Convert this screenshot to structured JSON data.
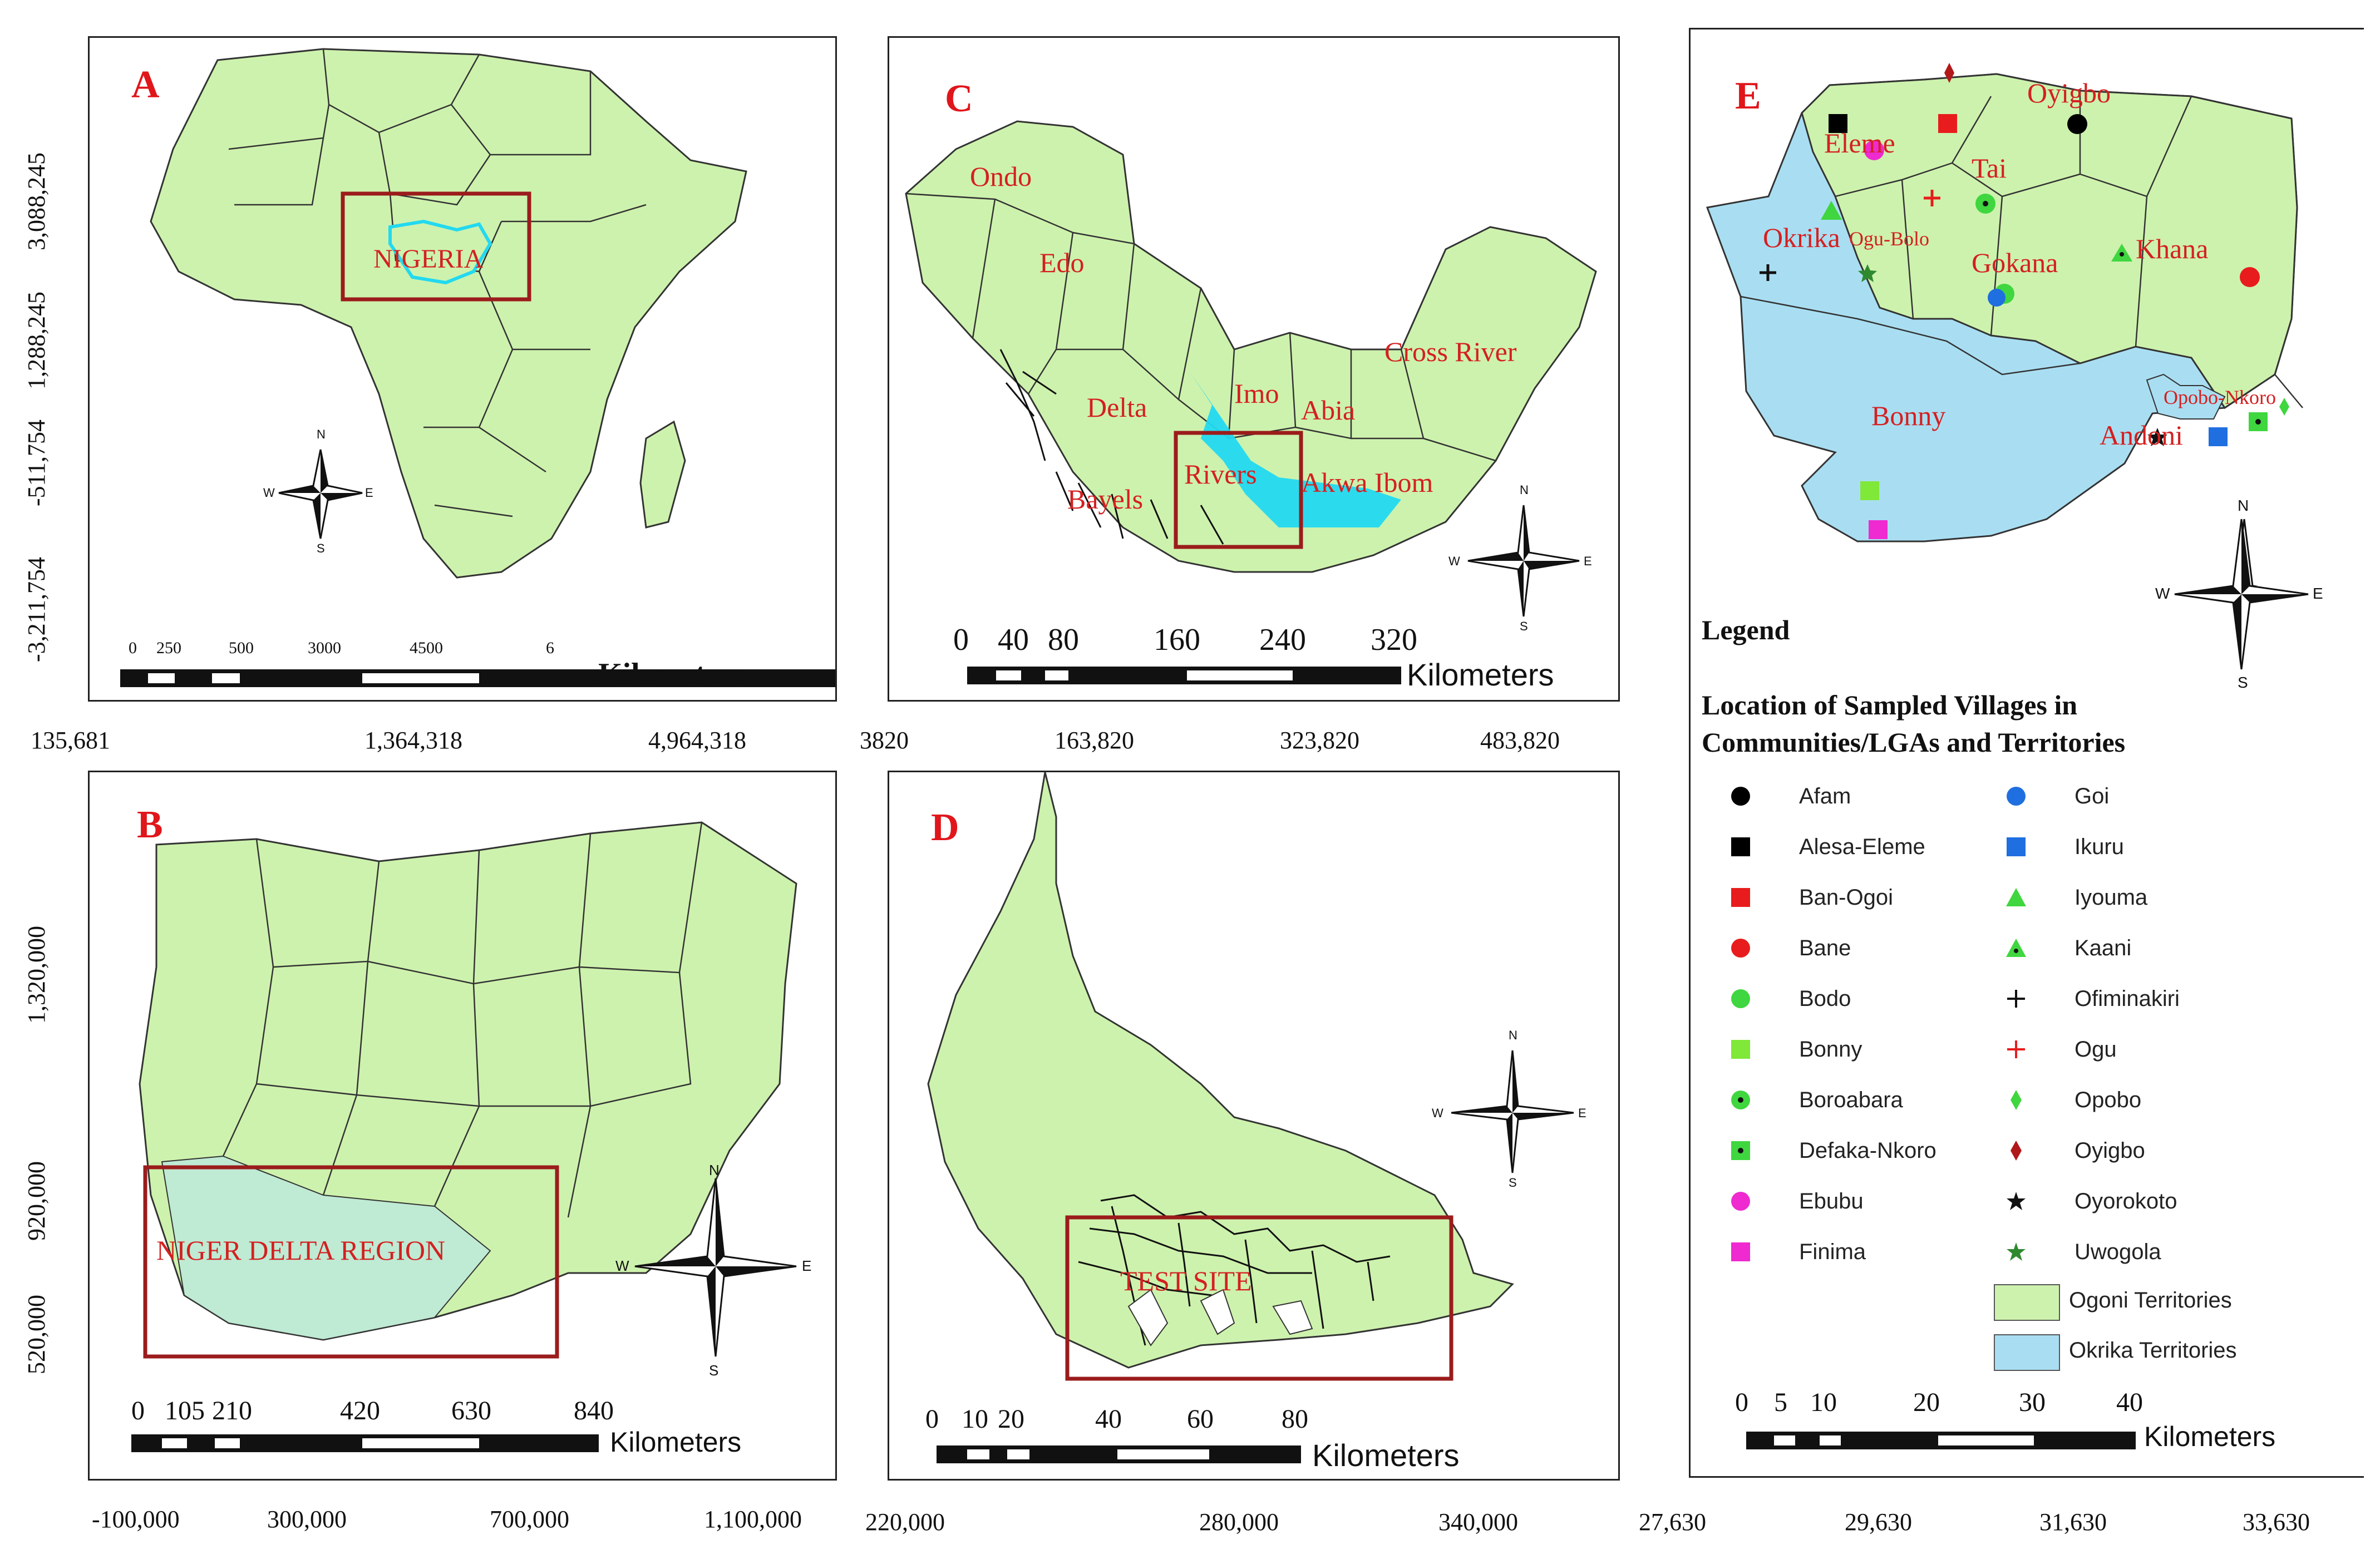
{
  "panels": {
    "A": {
      "label": "A",
      "region_label": "NIGERIA",
      "scale_ticks": [
        "0",
        "250",
        "500",
        "3000",
        "4500",
        "6"
      ],
      "scale_unit": "Kilometers",
      "x_coords": [
        "135,681",
        "1,364,318",
        "4,964,318"
      ],
      "y_coords": [
        "3,088,245",
        "1,288,245",
        "-511,754",
        "-3,211,754"
      ]
    },
    "B": {
      "label": "B",
      "region_label": "NIGER DELTA REGION",
      "scale_ticks": [
        "0",
        "105",
        "210",
        "420",
        "630",
        "840"
      ],
      "scale_unit": "Kilometers",
      "x_coords": [
        "-100,000",
        "300,000",
        "700,000",
        "1,100,000"
      ],
      "y_coords": [
        "1,320,000",
        "920,000",
        "520,000"
      ]
    },
    "C": {
      "label": "C",
      "states": [
        "Ondo",
        "Edo",
        "Delta",
        "Imo",
        "Abia",
        "Cross River",
        "Rivers",
        "Bayels",
        "Akwa Ibom"
      ],
      "scale_ticks": [
        "0",
        "40",
        "80",
        "160",
        "240",
        "320"
      ],
      "scale_unit": "Kilometers",
      "x_coords": [
        "3820",
        "163,820",
        "323,820",
        "483,820"
      ]
    },
    "D": {
      "label": "D",
      "region_label": "TEST SITE",
      "scale_ticks": [
        "0",
        "10",
        "20",
        "40",
        "60",
        "80"
      ],
      "scale_unit": "Kilometers",
      "x_coords": [
        "220,000",
        "280,000",
        "340,000"
      ]
    },
    "E": {
      "label": "E",
      "places": [
        "Oyigbo",
        "Eleme",
        "Tai",
        "Okrika",
        "Ogu-Bolo",
        "Gokana",
        "Khana",
        "Bonny",
        "Opobo-Nkoro",
        "Andoni"
      ],
      "scale_ticks": [
        "0",
        "5",
        "10",
        "20",
        "30",
        "40"
      ],
      "scale_unit": "Kilometers",
      "x_coords": [
        "27,630",
        "29,630",
        "31,630",
        "33,630"
      ],
      "legend_heading": "Legend",
      "legend_subtitle_1": "Location of Sampled Villages in",
      "legend_subtitle_2": "Communities/LGAs and Territories",
      "legend_left": [
        {
          "name": "Afam",
          "symbol": "circle",
          "color": "#000000"
        },
        {
          "name": "Alesa-Eleme",
          "symbol": "square",
          "color": "#000000"
        },
        {
          "name": "Ban-Ogoi",
          "symbol": "square",
          "color": "#e81c1c"
        },
        {
          "name": "Bane",
          "symbol": "circle",
          "color": "#e81c1c"
        },
        {
          "name": "Bodo",
          "symbol": "circle",
          "color": "#3fd63f"
        },
        {
          "name": "Bonny",
          "symbol": "square",
          "color": "#7fe838"
        },
        {
          "name": "Boroabara",
          "symbol": "circle-dot",
          "color": "#3fd63f"
        },
        {
          "name": "Defaka-Nkoro",
          "symbol": "square-dot",
          "color": "#3fd63f"
        },
        {
          "name": "Ebubu",
          "symbol": "circle",
          "color": "#ee2ad0"
        },
        {
          "name": "Finima",
          "symbol": "square",
          "color": "#ee2ad0"
        }
      ],
      "legend_right": [
        {
          "name": "Goi",
          "symbol": "circle",
          "color": "#1f6fe0"
        },
        {
          "name": "Ikuru",
          "symbol": "square",
          "color": "#1f6fe0"
        },
        {
          "name": "Iyouma",
          "symbol": "triangle",
          "color": "#3fd63f"
        },
        {
          "name": "Kaani",
          "symbol": "triangle-dot",
          "color": "#3fd63f"
        },
        {
          "name": "Ofiminakiri",
          "symbol": "cross",
          "color": "#111111"
        },
        {
          "name": "Ogu",
          "symbol": "cross",
          "color": "#e81c1c"
        },
        {
          "name": "Opobo",
          "symbol": "diamond",
          "color": "#3fd63f"
        },
        {
          "name": "Oyigbo",
          "symbol": "diamond",
          "color": "#b0181a"
        },
        {
          "name": "Oyorokoto",
          "symbol": "star",
          "color": "#111111"
        },
        {
          "name": "Uwogola",
          "symbol": "star",
          "color": "#2f8a2f"
        }
      ],
      "territories": [
        {
          "name": "Ogoni Territories",
          "color": "#cdf2ad"
        },
        {
          "name": "Okrika Territories",
          "color": "#a9def2"
        }
      ]
    }
  },
  "compass": {
    "n": "N",
    "s": "S",
    "e": "E",
    "w": "W"
  },
  "colors": {
    "land": "#cdf2ad",
    "water_blue": "#a9def2",
    "highlight": "#9b1c1c",
    "river_cyan": "#22d9f0"
  }
}
